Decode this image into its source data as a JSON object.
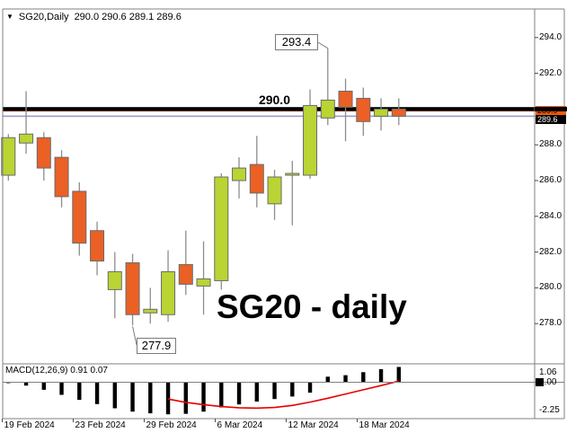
{
  "header": {
    "collapse_icon": "▼",
    "symbol_period": "SG20,Daily",
    "quote": "290.0 290.6 289.1 289.6"
  },
  "annotations": {
    "high_callout": "293.4",
    "low_callout": "277.9",
    "level_label": "290.0",
    "watermark": "SG20 - daily"
  },
  "price_axis": {
    "tick_labels": [
      "294.0",
      "292.0",
      "288.0",
      "286.0",
      "284.0",
      "282.0",
      "280.0",
      "278.0"
    ],
    "bid_price": "289.9",
    "last_price": "289.6"
  },
  "macd_panel": {
    "label": "MACD(12,26,9) 0.91 0.07",
    "upper_label": "1.06",
    "zero_label": "0.00",
    "lower_label": "-2.25"
  },
  "date_axis": [
    {
      "label": "19 Feb 2024",
      "index": 1
    },
    {
      "label": "23 Feb 2024",
      "index": 5
    },
    {
      "label": "29 Feb 2024",
      "index": 9
    },
    {
      "label": "6 Mar 2024",
      "index": 13
    },
    {
      "label": "12 Mar 2024",
      "index": 17
    },
    {
      "label": "18 Mar 2024",
      "index": 21
    }
  ],
  "colors": {
    "up_fill": "#b9d433",
    "down_fill": "#ea6025",
    "body_border": "#6b6b6b",
    "wick": "#8d8d8d",
    "level_line": "#000000",
    "bid_line": "#ee7f4b",
    "last_line": "#9b9bc8",
    "bid_box_bg": "#f05a0a",
    "last_box_bg": "#000000",
    "histogram": "#000000",
    "signal": "#e80000",
    "panel_border": "#808080"
  },
  "chart_data": {
    "type": "candlestick",
    "symbol": "SG20",
    "timeframe": "daily",
    "y_axis": {
      "min": 277.0,
      "max": 294.6,
      "visible_ticks": [
        294.0,
        292.0,
        288.0,
        286.0,
        284.0,
        282.0,
        280.0,
        278.0
      ]
    },
    "levels": {
      "horizontal_line": 290.0,
      "bid_line": 289.9,
      "last_line": 289.6,
      "high_annotation": 293.4,
      "low_annotation": 277.9
    },
    "candles": [
      {
        "date": "16 Feb 2024",
        "o": 286.3,
        "h": 288.6,
        "l": 286.0,
        "c": 288.4
      },
      {
        "date": "19 Feb 2024",
        "o": 288.1,
        "h": 291.0,
        "l": 287.5,
        "c": 288.6
      },
      {
        "date": "20 Feb 2024",
        "o": 288.4,
        "h": 288.7,
        "l": 286.0,
        "c": 286.7
      },
      {
        "date": "21 Feb 2024",
        "o": 287.3,
        "h": 287.7,
        "l": 284.5,
        "c": 285.1
      },
      {
        "date": "22 Feb 2024",
        "o": 285.4,
        "h": 285.9,
        "l": 281.8,
        "c": 282.5
      },
      {
        "date": "23 Feb 2024",
        "o": 283.2,
        "h": 283.7,
        "l": 280.7,
        "c": 281.5
      },
      {
        "date": "26 Feb 2024",
        "o": 279.9,
        "h": 282.0,
        "l": 278.3,
        "c": 280.9
      },
      {
        "date": "27 Feb 2024",
        "o": 281.4,
        "h": 281.9,
        "l": 277.9,
        "c": 278.5
      },
      {
        "date": "28 Feb 2024",
        "o": 278.6,
        "h": 280.0,
        "l": 278.0,
        "c": 278.8
      },
      {
        "date": "29 Feb 2024",
        "o": 278.5,
        "h": 282.1,
        "l": 278.1,
        "c": 280.9
      },
      {
        "date": "1 Mar 2024",
        "o": 281.3,
        "h": 283.2,
        "l": 279.6,
        "c": 280.2
      },
      {
        "date": "4 Mar 2024",
        "o": 280.1,
        "h": 282.6,
        "l": 278.5,
        "c": 280.5
      },
      {
        "date": "5 Mar 2024",
        "o": 280.4,
        "h": 286.4,
        "l": 279.9,
        "c": 286.2
      },
      {
        "date": "6 Mar 2024",
        "o": 286.0,
        "h": 287.3,
        "l": 285.0,
        "c": 286.7
      },
      {
        "date": "7 Mar 2024",
        "o": 286.9,
        "h": 288.5,
        "l": 284.5,
        "c": 285.3
      },
      {
        "date": "8 Mar 2024",
        "o": 284.7,
        "h": 286.6,
        "l": 283.8,
        "c": 286.2
      },
      {
        "date": "11 Mar 2024",
        "o": 286.3,
        "h": 287.1,
        "l": 283.5,
        "c": 286.4
      },
      {
        "date": "12 Mar 2024",
        "o": 286.3,
        "h": 291.1,
        "l": 286.1,
        "c": 290.2
      },
      {
        "date": "13 Mar 2024",
        "o": 289.5,
        "h": 293.4,
        "l": 289.1,
        "c": 290.5
      },
      {
        "date": "14 Mar 2024",
        "o": 291.0,
        "h": 291.7,
        "l": 288.2,
        "c": 290.1
      },
      {
        "date": "15 Mar 2024",
        "o": 290.6,
        "h": 291.2,
        "l": 288.5,
        "c": 289.3
      },
      {
        "date": "18 Mar 2024",
        "o": 289.6,
        "h": 290.6,
        "l": 288.8,
        "c": 290.0
      },
      {
        "date": "19 Mar 2024",
        "o": 290.0,
        "h": 290.6,
        "l": 289.1,
        "c": 289.6
      }
    ],
    "macd": {
      "params": "12,26,9",
      "current_values": "0.91 0.07",
      "y_range": [
        -2.25,
        1.06
      ],
      "histogram": [
        -0.02,
        -0.2,
        -0.45,
        -0.75,
        -1.05,
        -1.3,
        -1.55,
        -1.75,
        -1.85,
        -1.91,
        -1.88,
        -1.75,
        -1.5,
        -1.32,
        -1.15,
        -1.0,
        -0.85,
        -0.62,
        0.33,
        0.42,
        0.6,
        0.78,
        0.91
      ],
      "signal": [
        null,
        null,
        null,
        null,
        null,
        null,
        null,
        null,
        null,
        -1.0,
        -1.2,
        -1.33,
        -1.45,
        -1.52,
        -1.54,
        -1.5,
        -1.38,
        -1.18,
        -0.95,
        -0.7,
        -0.45,
        -0.2,
        0.07
      ]
    }
  }
}
